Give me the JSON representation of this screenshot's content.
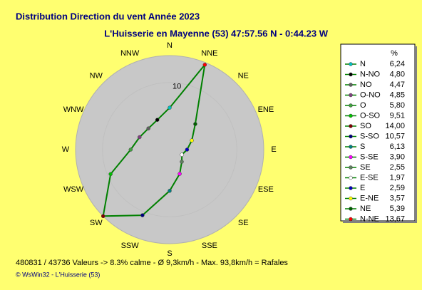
{
  "chart_data": {
    "type": "radar",
    "title": "Distribution Direction du vent   Année 2023",
    "subtitle": "L'Huisserie en Mayenne (53) 47:57.56 N - 0:44.23 W",
    "categories": [
      "N",
      "N-NO",
      "NO",
      "O-NO",
      "O",
      "O-SO",
      "SO",
      "S-SO",
      "S",
      "S-SE",
      "SE",
      "E-SE",
      "E",
      "E-NE",
      "NE",
      "N-NE"
    ],
    "axis_labels": [
      "N",
      "NNW",
      "NW",
      "WNW",
      "W",
      "WSW",
      "SW",
      "SSW",
      "S",
      "SSE",
      "SE",
      "ESE",
      "E",
      "ENE",
      "NE",
      "NNE"
    ],
    "values": [
      6.24,
      4.8,
      4.47,
      4.85,
      5.8,
      9.51,
      14.0,
      10.57,
      6.13,
      3.9,
      2.55,
      1.97,
      2.59,
      3.57,
      5.39,
      13.67
    ],
    "value_labels": [
      "6,24",
      "4,80",
      "4,47",
      "4,85",
      "5,80",
      "9,51",
      "14,00",
      "10,57",
      "6,13",
      "3,90",
      "2,55",
      "1,97",
      "2,59",
      "3,57",
      "5,39",
      "13,67"
    ],
    "colors": [
      "#00c0c0",
      "#000000",
      "#606060",
      "#804080",
      "#40a040",
      "#00c000",
      "#800000",
      "#000080",
      "#008080",
      "#ff00ff",
      "#608060",
      "#ffffff",
      "#0000c0",
      "#ffff00",
      "#006000",
      "#ff0000"
    ],
    "line_color": "#008000",
    "rlim": [
      0,
      14
    ],
    "rticks": [
      10
    ],
    "legend_header": "%",
    "footer": "480831 / 43736 Valeurs  -> 8.3% calme   -   Ø 9,3km/h  -  Max. 93,8km/h = Rafales",
    "credit": "© WsWin32  -  L'Huisserie (53)"
  }
}
